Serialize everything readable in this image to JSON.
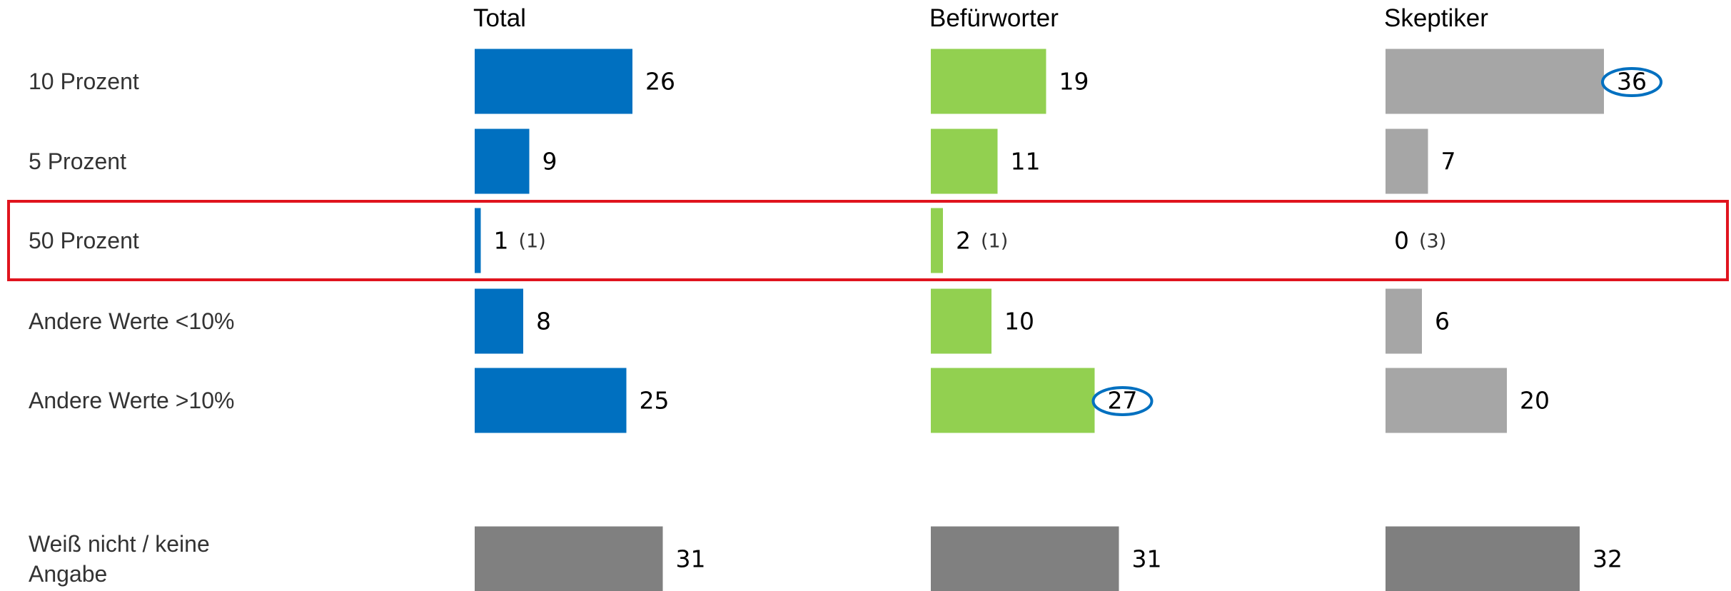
{
  "chart_data": {
    "type": "bar",
    "orientation": "horizontal",
    "categories": [
      "10 Prozent",
      "5 Prozent",
      "50 Prozent",
      "Andere Werte <10%",
      "Andere Werte >10%",
      "Weiß nicht / keine Angabe"
    ],
    "series": [
      {
        "name": "Total",
        "color": "#0070c0",
        "colors": [
          "#0070c0",
          "#0070c0",
          "#0070c0",
          "#0070c0",
          "#0070c0",
          "#808080"
        ],
        "values": [
          26,
          9,
          1,
          8,
          25,
          31
        ],
        "annotations": [
          null,
          null,
          "(1)",
          null,
          null,
          null
        ]
      },
      {
        "name": "Befürworter",
        "color": "#92d050",
        "colors": [
          "#92d050",
          "#92d050",
          "#92d050",
          "#92d050",
          "#92d050",
          "#808080"
        ],
        "values": [
          19,
          11,
          2,
          10,
          27,
          31
        ],
        "annotations": [
          null,
          null,
          "(1)",
          null,
          null,
          null
        ],
        "circled_index": 4
      },
      {
        "name": "Skeptiker",
        "color": "#a6a6a6",
        "colors": [
          "#a6a6a6",
          "#a6a6a6",
          "#a6a6a6",
          "#a6a6a6",
          "#a6a6a6",
          "#7f7f7f"
        ],
        "values": [
          36,
          7,
          0,
          6,
          20,
          32
        ],
        "annotations": [
          null,
          null,
          "(3)",
          null,
          null,
          null
        ],
        "circled_index": 0
      }
    ],
    "highlight_row": 2,
    "highlight_color": "#e0141e",
    "circle_color": "#0070c0"
  }
}
